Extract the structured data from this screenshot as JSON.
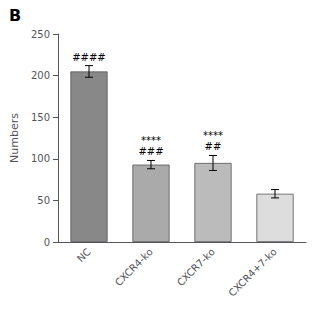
{
  "chart_data": {
    "type": "bar",
    "title": "B",
    "ylabel": "Numbers",
    "categories": [
      "NC",
      "CXCR4-ko",
      "CXCR7-ko",
      "CXCR4+7-ko"
    ],
    "values": [
      205,
      93,
      95,
      58
    ],
    "errors": [
      7,
      5,
      9,
      5
    ],
    "colors": [
      "#888888",
      "#aaaaaa",
      "#bbbbbb",
      "#dddddd"
    ],
    "annotations": [
      "####",
      "****\n###",
      "****\n##",
      null
    ],
    "ylim": [
      0,
      250
    ],
    "yticks": [
      0,
      50,
      100,
      150,
      200,
      250
    ],
    "grid": false
  }
}
